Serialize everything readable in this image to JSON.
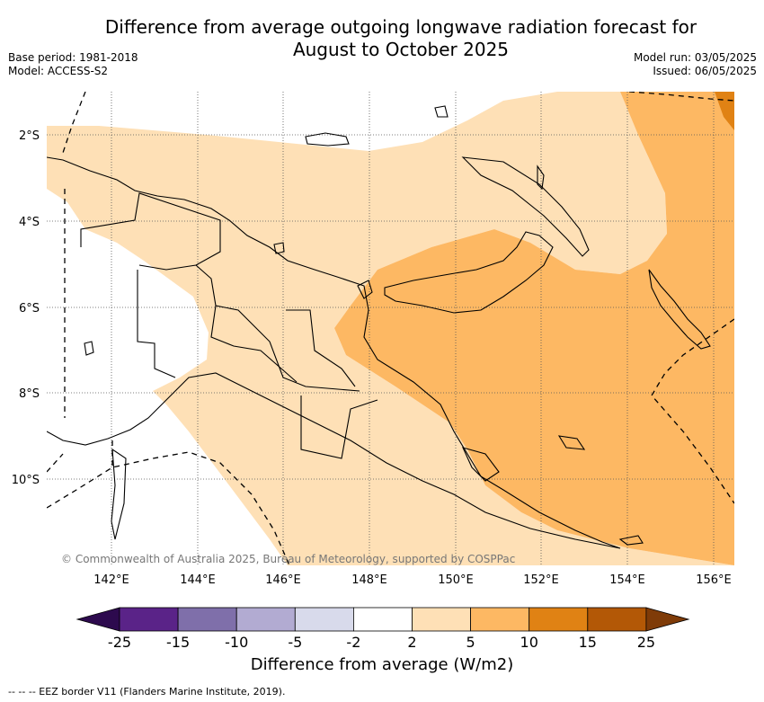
{
  "title_line1": "Difference from average outgoing longwave radiation forecast for",
  "title_line2": "August to October 2025",
  "base_period": "Base period: 1981-2018",
  "model": "Model: ACCESS-S2",
  "model_run": "Model run: 03/05/2025",
  "issued": "Issued: 06/05/2025",
  "copyright": "© Commonwealth of Australia 2025, Bureau of Meteorology, supported by COSPPac",
  "colorbar_label": "Difference from average (W/m2)",
  "footnote": "-- -- -- EEZ border V11 (Flanders Marine Institute, 2019).",
  "longitudes": [
    "142°E",
    "144°E",
    "146°E",
    "148°E",
    "150°E",
    "152°E",
    "154°E",
    "156°E"
  ],
  "latitudes": [
    "2°S",
    "4°S",
    "6°S",
    "8°S",
    "10°S"
  ],
  "colorbar": {
    "ticks": [
      "-25",
      "-15",
      "-10",
      "-5",
      "-2",
      "2",
      "5",
      "10",
      "15",
      "25"
    ],
    "colors": [
      "#2d0a4e",
      "#5a2388",
      "#7f6faa",
      "#b2abd2",
      "#d8daeb",
      "#ffffff",
      "#fee0b6",
      "#fdb863",
      "#e08214",
      "#b35806",
      "#7f3b08"
    ]
  }
}
